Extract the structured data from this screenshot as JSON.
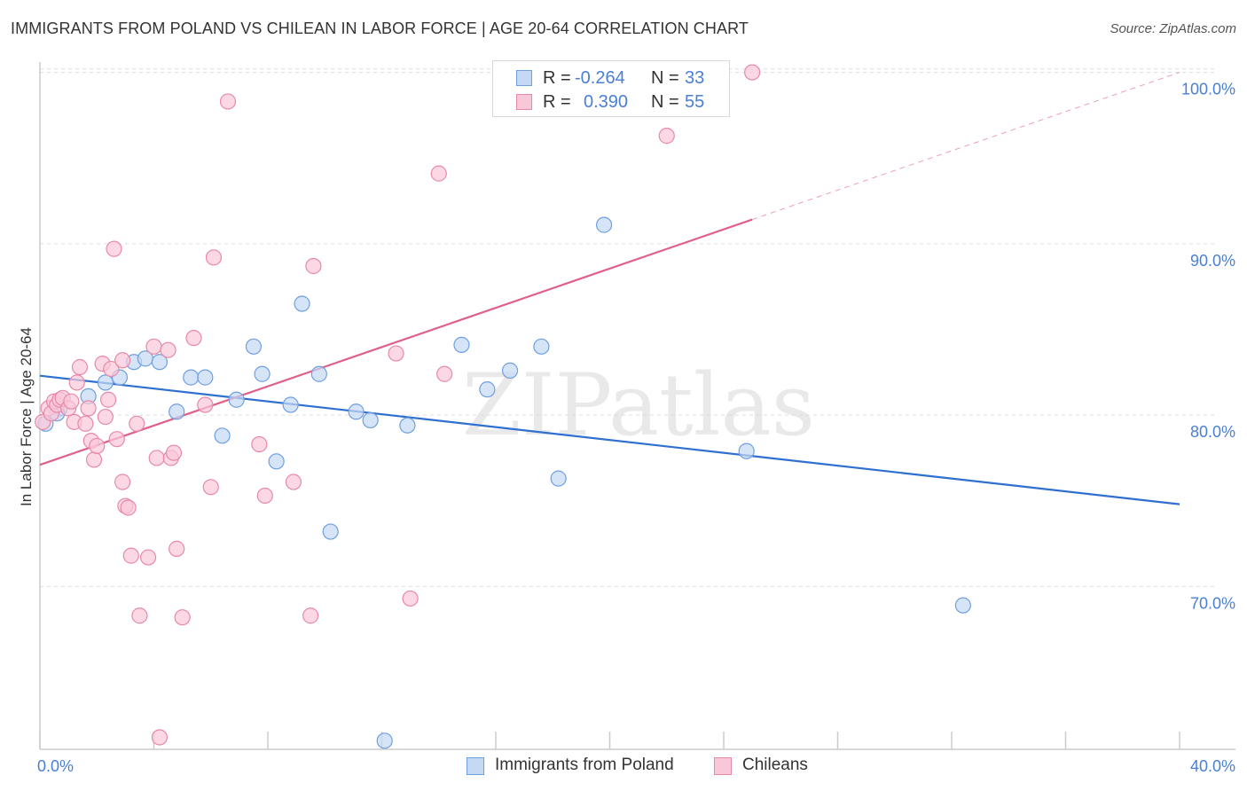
{
  "title": "IMMIGRANTS FROM POLAND VS CHILEAN IN LABOR FORCE | AGE 20-64 CORRELATION CHART",
  "source": "Source: ZipAtlas.com",
  "watermark": "ZIPatlas",
  "colors": {
    "blue_fill": "#c5d9f5",
    "blue_stroke": "#6f9fe0",
    "blue_line": "#2f6fd0",
    "pink_fill": "#f9c8d8",
    "pink_stroke": "#e889a8",
    "pink_line": "#e0608a",
    "tick_text": "#4a7fd6",
    "grid": "#dddddd"
  },
  "legend": {
    "rows": [
      {
        "r_label": "R =",
        "r_value": "-0.264",
        "n_label": "N =",
        "n_value": "33",
        "series": "blue"
      },
      {
        "r_label": "R =",
        "r_value": "0.390",
        "n_label": "N =",
        "n_value": "55",
        "series": "pink"
      }
    ]
  },
  "bottom_legend": [
    {
      "label": "Immigrants from Poland",
      "series": "blue"
    },
    {
      "label": "Chileans",
      "series": "pink"
    }
  ],
  "chart_data": {
    "type": "scatter",
    "title": "IMMIGRANTS FROM POLAND VS CHILEAN IN LABOR FORCE | AGE 20-64 CORRELATION CHART",
    "xlabel": "",
    "ylabel": "In Labor Force | Age 20-64",
    "xlim": [
      0.0,
      40.0
    ],
    "ylim": [
      60.5,
      100.6
    ],
    "x_tick_labels": [
      "0.0%",
      "40.0%"
    ],
    "y_ticks": [
      70,
      80,
      90,
      100
    ],
    "y_tick_labels": [
      "70.0%",
      "80.0%",
      "90.0%",
      "100.0%"
    ],
    "series": [
      {
        "name": "Immigrants from Poland",
        "color": "blue",
        "trend": {
          "x0": 0.0,
          "y0": 82.3,
          "x1": 40.0,
          "y1": 74.8,
          "dash_after": null
        },
        "points": [
          [
            0.2,
            79.5
          ],
          [
            0.7,
            80.4
          ],
          [
            1.7,
            81.1
          ],
          [
            2.3,
            81.9
          ],
          [
            2.8,
            82.2
          ],
          [
            3.3,
            83.1
          ],
          [
            3.7,
            83.3
          ],
          [
            4.2,
            83.1
          ],
          [
            4.8,
            80.2
          ],
          [
            5.3,
            82.2
          ],
          [
            5.8,
            82.2
          ],
          [
            6.4,
            78.8
          ],
          [
            6.9,
            80.9
          ],
          [
            7.5,
            84.0
          ],
          [
            7.8,
            82.4
          ],
          [
            8.3,
            77.3
          ],
          [
            8.8,
            80.6
          ],
          [
            9.2,
            86.5
          ],
          [
            9.8,
            82.4
          ],
          [
            10.2,
            73.2
          ],
          [
            11.1,
            80.2
          ],
          [
            11.6,
            79.7
          ],
          [
            12.1,
            61.0
          ],
          [
            12.9,
            79.4
          ],
          [
            14.8,
            84.1
          ],
          [
            15.7,
            81.5
          ],
          [
            16.5,
            82.6
          ],
          [
            17.6,
            84.0
          ],
          [
            18.2,
            76.3
          ],
          [
            19.8,
            91.1
          ],
          [
            24.8,
            77.9
          ],
          [
            32.4,
            68.9
          ],
          [
            0.6,
            80.1
          ]
        ]
      },
      {
        "name": "Chileans",
        "color": "pink",
        "trend": {
          "x0": 0.0,
          "y0": 77.1,
          "x1": 40.0,
          "y1": 100.0,
          "dash_after": 25.0
        },
        "points": [
          [
            0.1,
            79.6
          ],
          [
            0.3,
            80.4
          ],
          [
            0.4,
            80.1
          ],
          [
            0.5,
            80.8
          ],
          [
            0.6,
            80.6
          ],
          [
            0.7,
            80.9
          ],
          [
            0.8,
            81.0
          ],
          [
            1.0,
            80.4
          ],
          [
            1.1,
            80.8
          ],
          [
            1.2,
            79.6
          ],
          [
            1.3,
            81.9
          ],
          [
            1.4,
            82.8
          ],
          [
            1.6,
            79.5
          ],
          [
            1.7,
            80.4
          ],
          [
            1.8,
            78.5
          ],
          [
            1.9,
            77.4
          ],
          [
            2.0,
            78.2
          ],
          [
            2.2,
            83.0
          ],
          [
            2.3,
            79.9
          ],
          [
            2.4,
            80.9
          ],
          [
            2.5,
            82.7
          ],
          [
            2.6,
            89.7
          ],
          [
            2.7,
            78.6
          ],
          [
            2.9,
            76.1
          ],
          [
            3.0,
            74.7
          ],
          [
            3.1,
            74.6
          ],
          [
            3.2,
            71.8
          ],
          [
            3.4,
            79.5
          ],
          [
            3.5,
            68.3
          ],
          [
            3.8,
            71.7
          ],
          [
            4.0,
            84.0
          ],
          [
            4.1,
            77.5
          ],
          [
            4.2,
            61.2
          ],
          [
            4.5,
            83.8
          ],
          [
            4.6,
            77.5
          ],
          [
            4.7,
            77.8
          ],
          [
            4.8,
            72.2
          ],
          [
            5.0,
            68.2
          ],
          [
            5.4,
            84.5
          ],
          [
            5.8,
            80.6
          ],
          [
            6.0,
            75.8
          ],
          [
            6.1,
            89.2
          ],
          [
            6.6,
            98.3
          ],
          [
            7.7,
            78.3
          ],
          [
            7.9,
            75.3
          ],
          [
            8.9,
            76.1
          ],
          [
            9.5,
            68.3
          ],
          [
            9.6,
            88.7
          ],
          [
            12.5,
            83.6
          ],
          [
            13.0,
            69.3
          ],
          [
            14.0,
            94.1
          ],
          [
            14.2,
            82.4
          ],
          [
            22.0,
            96.3
          ],
          [
            25.0,
            100.0
          ],
          [
            2.9,
            83.2
          ]
        ]
      }
    ]
  }
}
